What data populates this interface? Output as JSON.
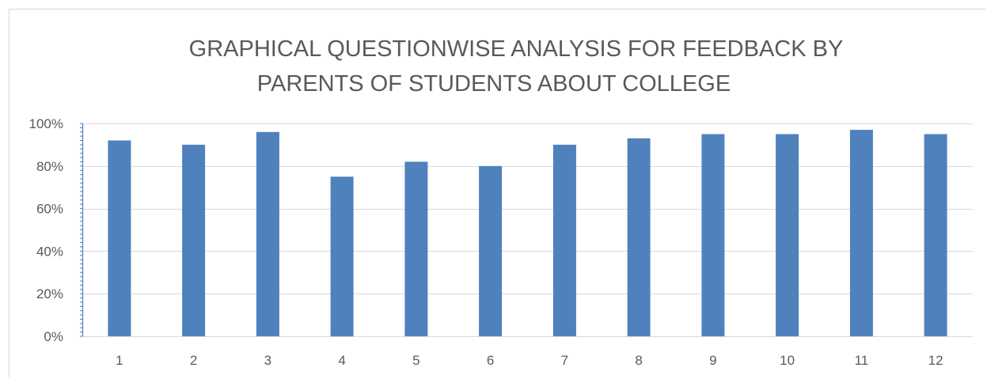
{
  "chart_data": {
    "type": "bar",
    "title_lines": [
      "GRAPHICAL QUESTIONWISE ANALYSIS FOR FEEDBACK BY",
      "PARENTS OF STUDENTS ABOUT COLLEGE"
    ],
    "categories": [
      "1",
      "2",
      "3",
      "4",
      "5",
      "6",
      "7",
      "8",
      "9",
      "10",
      "11",
      "12"
    ],
    "values": [
      0.92,
      0.9,
      0.96,
      0.75,
      0.82,
      0.8,
      0.9,
      0.93,
      0.95,
      0.95,
      0.97,
      0.95
    ],
    "ylim": [
      0,
      1
    ],
    "yticks": [
      0,
      0.2,
      0.4,
      0.6,
      0.8,
      1.0
    ],
    "ytick_labels": [
      "0%",
      "20%",
      "40%",
      "60%",
      "80%",
      "100%"
    ],
    "grid": true,
    "legend": false,
    "bar_color": "#4f81bd",
    "axis_color": "#4a7ebb",
    "grid_color": "#d9d9d9",
    "text_color": "#595959"
  }
}
